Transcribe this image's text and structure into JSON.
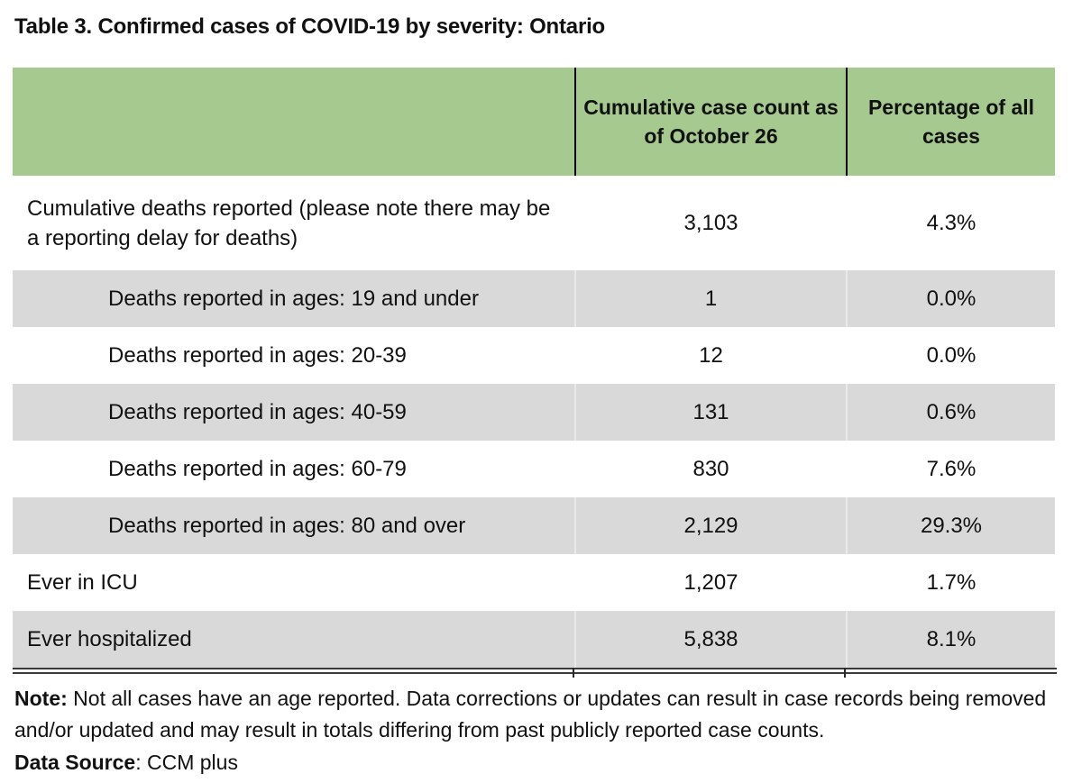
{
  "title": "Table 3. Confirmed cases of COVID-19 by severity: Ontario",
  "table": {
    "header": {
      "row_label_col": "",
      "count_col": "Cumulative case count as of October 26",
      "pct_col": "Percentage of all cases"
    },
    "rows": [
      {
        "label": "Cumulative deaths reported (please note there may be a reporting delay for deaths)",
        "count": "3,103",
        "pct": "4.3%"
      },
      {
        "label": "Deaths reported in ages: 19 and under",
        "count": "1",
        "pct": "0.0%"
      },
      {
        "label": "Deaths reported in ages: 20-39",
        "count": "12",
        "pct": "0.0%"
      },
      {
        "label": "Deaths reported in ages: 40-59",
        "count": "131",
        "pct": "0.6%"
      },
      {
        "label": "Deaths reported in ages: 60-79",
        "count": "830",
        "pct": "7.6%"
      },
      {
        "label": "Deaths reported in ages: 80 and over",
        "count": "2,129",
        "pct": "29.3%"
      },
      {
        "label": "Ever in ICU",
        "count": "1,207",
        "pct": "1.7%"
      },
      {
        "label": "Ever hospitalized",
        "count": "5,838",
        "pct": "8.1%"
      }
    ]
  },
  "notes": {
    "note_label": "Note:",
    "note_text": " Not all cases have an age reported. Data corrections or updates can result in case records being removed and/or updated and may result in totals differing from past publicly reported case counts.",
    "source_label": "Data Source",
    "source_text": ": CCM plus"
  },
  "colors": {
    "header_green": "#a6c98f",
    "row_gray": "#d9d9d9",
    "text": "#111111",
    "border_dark": "#3a3a3a",
    "header_divider": "#000000"
  }
}
